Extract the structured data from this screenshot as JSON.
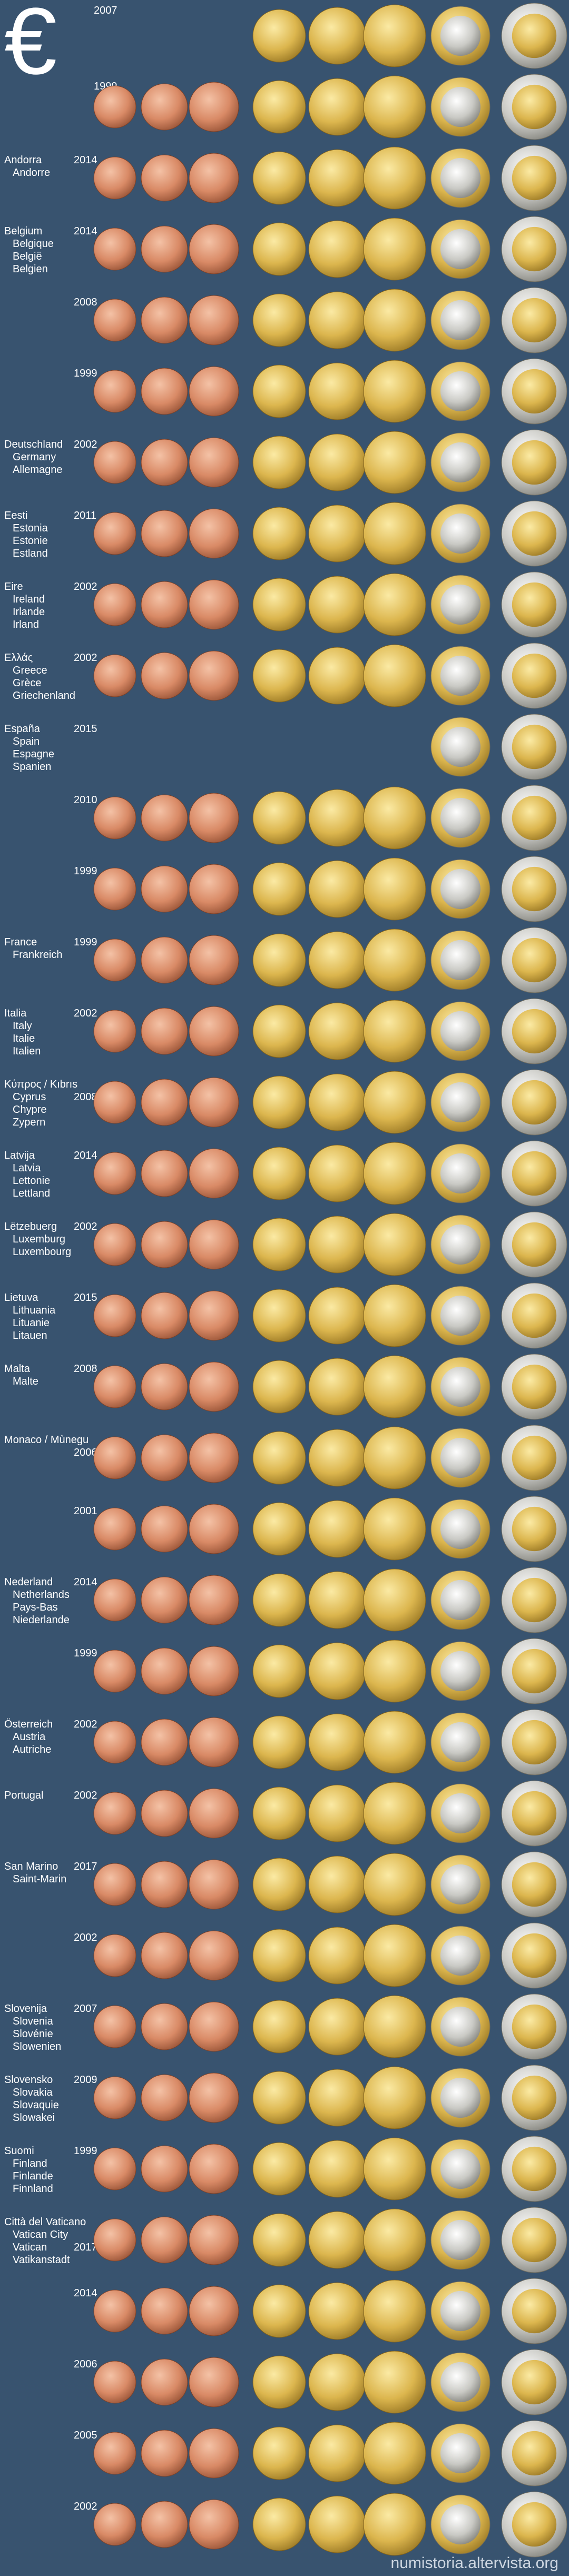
{
  "symbol": "€",
  "rows": [
    {
      "year": "2007",
      "lines": []
    },
    {
      "year": "1999",
      "lines": []
    },
    {
      "year": "2014",
      "lines": [
        "Andorra",
        "Andorre"
      ]
    },
    {
      "year": "2014",
      "lines": [
        "Belgium",
        "Belgique",
        "België",
        "Belgien"
      ]
    },
    {
      "year": "2008",
      "lines": []
    },
    {
      "year": "1999",
      "lines": []
    },
    {
      "year": "2002",
      "lines": [
        "Deutschland",
        "Germany",
        "Allemagne"
      ]
    },
    {
      "year": "2011",
      "lines": [
        "Eesti",
        "Estonia",
        "Estonie",
        "Estland"
      ]
    },
    {
      "year": "2002",
      "lines": [
        "Eire",
        "Ireland",
        "Irlande",
        "Irland"
      ]
    },
    {
      "year": "2002",
      "lines": [
        "Ελλάς",
        "Greece",
        "Grèce",
        "Griechenland"
      ]
    },
    {
      "year": "2015",
      "lines": [
        "España",
        "Spain",
        "Espagne",
        "Spanien"
      ]
    },
    {
      "year": "2010",
      "lines": []
    },
    {
      "year": "1999",
      "lines": []
    },
    {
      "year": "1999",
      "lines": [
        "France",
        "Frankreich"
      ]
    },
    {
      "year": "2002",
      "lines": [
        "Italia",
        "Italy",
        "Italie",
        "Italien"
      ]
    },
    {
      "year": "2008",
      "lines": [
        "Κύπρος / Kıbrıs",
        "Cyprus",
        "Chypre",
        "Zypern"
      ]
    },
    {
      "year": "2014",
      "lines": [
        "Latvija",
        "Latvia",
        "Lettonie",
        "Lettland"
      ]
    },
    {
      "year": "2002",
      "lines": [
        "Lëtzebuerg",
        "Luxemburg",
        "Luxembourg"
      ]
    },
    {
      "year": "2015",
      "lines": [
        "Lietuva",
        "Lithuania",
        "Lituanie",
        "Litauen"
      ]
    },
    {
      "year": "2008",
      "lines": [
        "Malta",
        "Malte"
      ]
    },
    {
      "year": "2006",
      "lines": [
        "Monaco / Mùnegu"
      ]
    },
    {
      "year": "2001",
      "lines": []
    },
    {
      "year": "2014",
      "lines": [
        "Nederland",
        "Netherlands",
        "Pays-Bas",
        "Niederlande"
      ]
    },
    {
      "year": "1999",
      "lines": []
    },
    {
      "year": "2002",
      "lines": [
        "Österreich",
        "Austria",
        "Autriche"
      ]
    },
    {
      "year": "2002",
      "lines": [
        "Portugal"
      ]
    },
    {
      "year": "2017",
      "lines": [
        "San Marino",
        "Saint-Marin"
      ]
    },
    {
      "year": "2002",
      "lines": []
    },
    {
      "year": "2007",
      "lines": [
        "Slovenija",
        "Slovenia",
        "Slovénie",
        "Slowenien"
      ]
    },
    {
      "year": "2009",
      "lines": [
        "Slovensko",
        "Slovakia",
        "Slovaquie",
        "Slowakei"
      ]
    },
    {
      "year": "1999",
      "lines": [
        "Suomi",
        "Finland",
        "Finlande",
        "Finnland"
      ]
    },
    {
      "year": "2017",
      "lines": [
        "Città del Vaticano",
        "Vatican City",
        "Vatican",
        "Vatikanstadt"
      ]
    },
    {
      "year": "2014",
      "lines": []
    },
    {
      "year": "2006",
      "lines": []
    },
    {
      "year": "2005",
      "lines": []
    },
    {
      "year": "2002",
      "lines": []
    }
  ],
  "watermark": "numistoria.altervista.org"
}
